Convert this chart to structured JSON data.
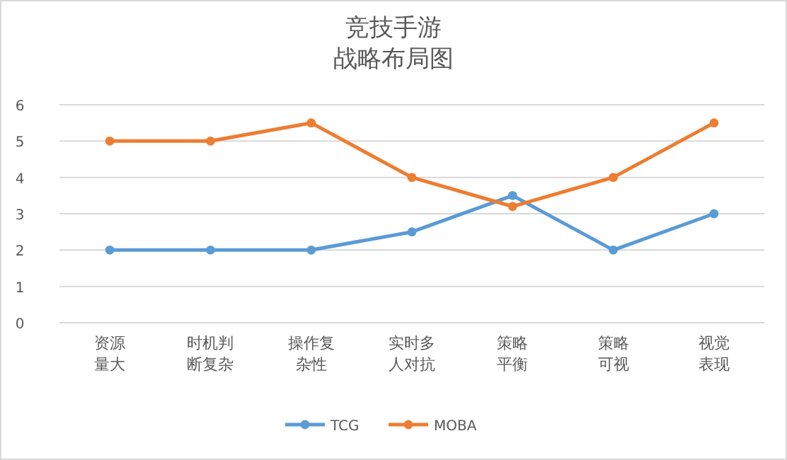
{
  "chart_data": {
    "type": "line",
    "title": "竞技手游",
    "subtitle": "战略布局图",
    "categories": [
      "资源量大",
      "时机判断复杂",
      "操作复杂性",
      "实时多人对抗",
      "策略平衡",
      "策略可视",
      "视觉表现"
    ],
    "series": [
      {
        "name": "TCG",
        "color": "#5b9bd5",
        "values": [
          2,
          2,
          2,
          2.5,
          3.5,
          2,
          3
        ]
      },
      {
        "name": "MOBA",
        "color": "#ed7d31",
        "values": [
          5,
          5,
          5.5,
          4,
          3.2,
          4,
          5.5
        ]
      }
    ],
    "ylim": [
      0,
      6
    ],
    "yticks": [
      0,
      1,
      2,
      3,
      4,
      5,
      6
    ],
    "grid": "y",
    "legend": "bottom",
    "marker": "circle",
    "line_style": "solid"
  }
}
